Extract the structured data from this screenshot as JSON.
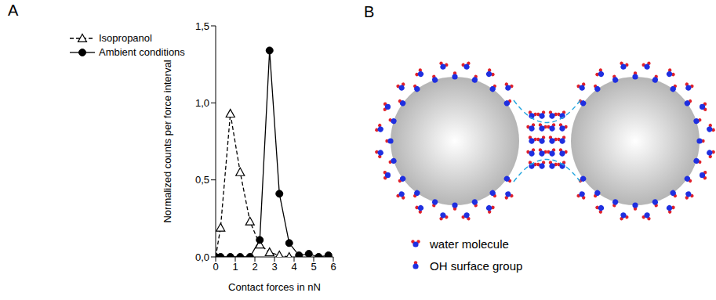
{
  "chart_data": {
    "type": "line",
    "panel": "A",
    "x_label": "Contact forces in nN",
    "y_label": "Normalized counts per force interval",
    "x": [
      0,
      0.25,
      0.75,
      1.25,
      1.75,
      2.25,
      2.75,
      3.25,
      3.75,
      4.25,
      4.75,
      5.25,
      5.75
    ],
    "series": [
      {
        "name": "Isopropanol",
        "color": "#000000",
        "marker": "triangle",
        "line_style": "dashed",
        "values": [
          0,
          0.19,
          0.93,
          0.55,
          0.23,
          0.08,
          0.03,
          0.01,
          0,
          null,
          null,
          null,
          null
        ]
      },
      {
        "name": "Ambient conditions",
        "color": "#000000",
        "marker": "circle",
        "line_style": "solid",
        "values": [
          0,
          0,
          0,
          0,
          0,
          0.11,
          1.34,
          0.41,
          0.09,
          0.01,
          0.02,
          0,
          0.01
        ]
      }
    ],
    "xlim": [
      0,
      6
    ],
    "xticks": [
      0,
      1,
      2,
      3,
      4,
      5,
      6
    ],
    "ylim": [
      0,
      1.5
    ],
    "yticks": [
      {
        "value": 0,
        "label": "0,0"
      },
      {
        "value": 0.5,
        "label": "0,5"
      },
      {
        "value": 1,
        "label": "1,0"
      },
      {
        "value": 1.5,
        "label": "1,5"
      }
    ],
    "grid": false,
    "legend": "upper left"
  },
  "diagram": {
    "panel": "B",
    "legend": [
      {
        "label": "water molecule"
      },
      {
        "label": "OH surface group"
      }
    ]
  }
}
